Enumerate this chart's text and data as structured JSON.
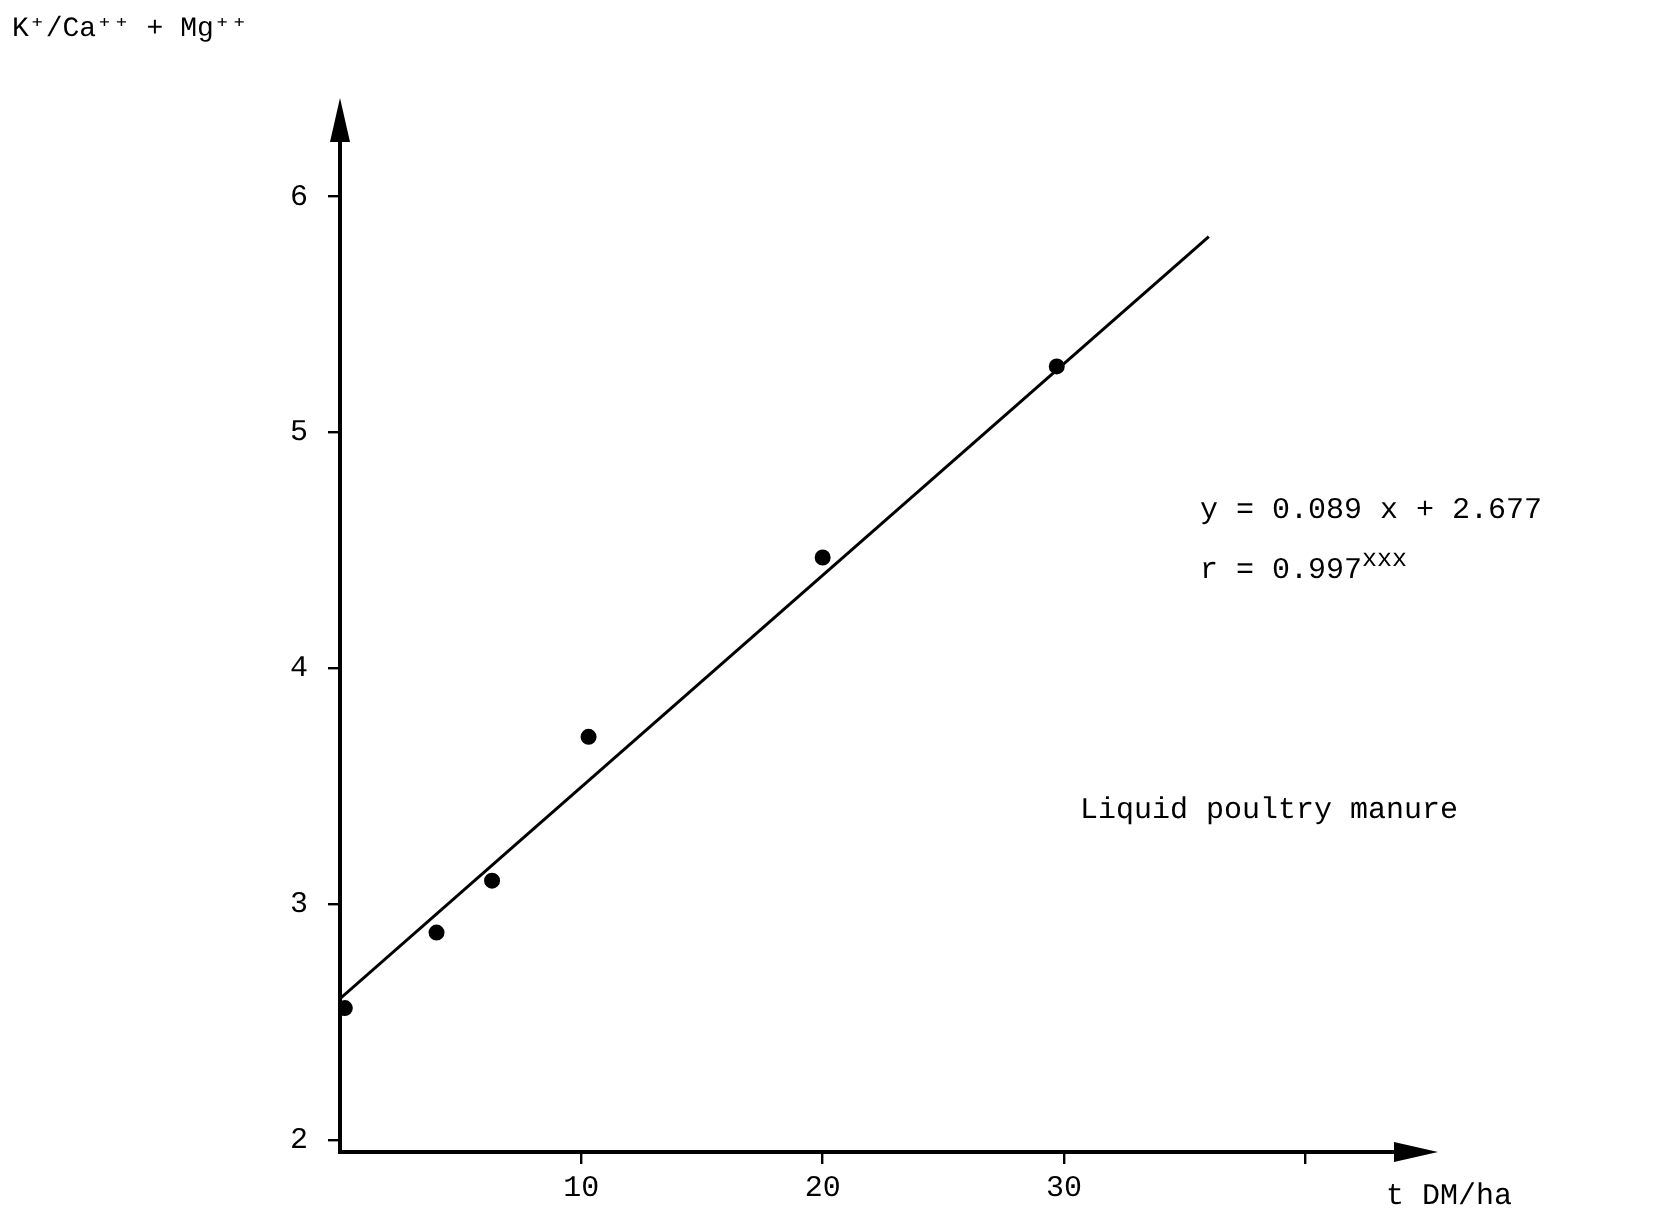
{
  "chart_data": {
    "type": "scatter",
    "ylabel": "K⁺/Ca⁺⁺ + Mg⁺⁺",
    "xlabel": "t DM/ha",
    "xlim": [
      0,
      45
    ],
    "xticks": [
      10,
      20,
      30,
      {
        "value": 40,
        "label": null
      }
    ],
    "ylim": [
      1.95,
      6.35
    ],
    "yticks": [
      2,
      3,
      4,
      5,
      6
    ],
    "series": [
      {
        "color": "#000000",
        "marker": "circle",
        "x": [
          0.2,
          4,
          6.3,
          10.3,
          20,
          29.7
        ],
        "values": [
          2.56,
          2.88,
          3.1,
          3.71,
          4.47,
          5.28
        ]
      },
      {
        "type": "line",
        "color": "#000000",
        "marker": "none",
        "line_style": "solid",
        "x": [
          0,
          36
        ],
        "values": [
          2.6,
          5.83
        ]
      }
    ],
    "grid": false,
    "legend": false,
    "annotations": [
      "y = 0.089 x + 2.677",
      "r = 0.997$^{xxx}$",
      "Liquid poultry manure"
    ]
  }
}
